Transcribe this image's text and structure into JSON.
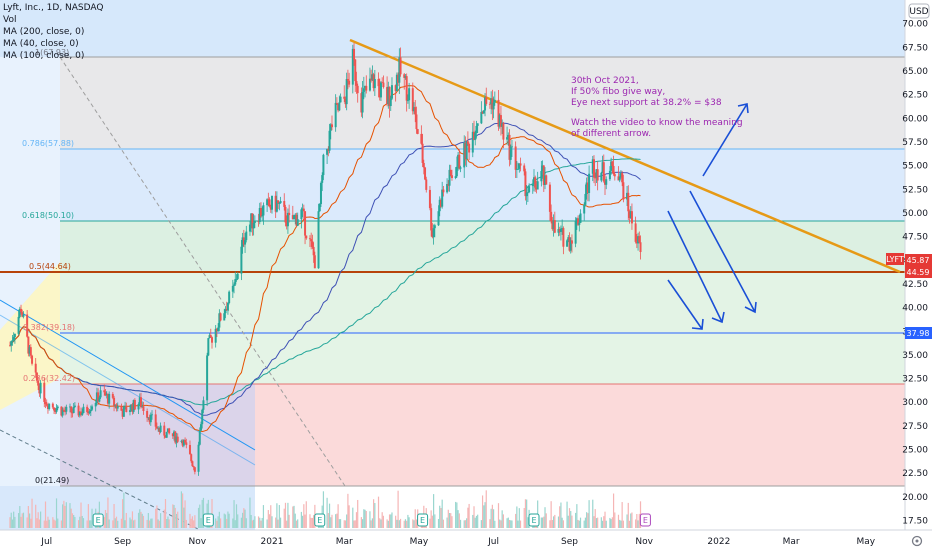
{
  "header": {
    "symbol_line": "Lyft, Inc., 1D, NASDAQ",
    "vol": "Vol",
    "ma_200": "MA (200, close, 0)",
    "ma_40": "MA (40, close, 0)",
    "ma_100": "MA (100, close, 0)"
  },
  "currency": "USD",
  "price_axis": [
    "70.00",
    "67.50",
    "65.00",
    "62.50",
    "60.00",
    "57.50",
    "55.00",
    "52.50",
    "50.00",
    "47.50",
    "45.00",
    "42.50",
    "40.00",
    "37.50",
    "35.00",
    "32.50",
    "30.00",
    "27.50",
    "25.00",
    "22.50",
    "20.00",
    "17.50"
  ],
  "time_axis": [
    "Jul",
    "Sep",
    "Nov",
    "2021",
    "Mar",
    "May",
    "Jul",
    "Sep",
    "Nov",
    "2022",
    "Mar",
    "May"
  ],
  "fib_labels": {
    "f1": "1(67.93)",
    "f786": "0.786(57.88)",
    "f618": "0.618(50.10)",
    "f5": "0.5(44.64)",
    "f382": "0.382(39.18)",
    "f236": "0.236(32.42)",
    "f0": "0(21.49)"
  },
  "badges": {
    "lyft": "LYFT",
    "last": "45.87",
    "level": "44.59",
    "support": "37.98"
  },
  "note": {
    "l1": "30th Oct 2021,",
    "l2": "If 50% fibo give way,",
    "l3": "Eye next support at 38.2% = $38",
    "l4": "Watch the video to know the meaning",
    "l5": "of different arrow."
  },
  "earnings_marker": "E",
  "chart_data": {
    "type": "candlestick",
    "title": "Lyft, Inc., 1D, NASDAQ",
    "ylim": [
      16.5,
      72.5
    ],
    "fib_levels": [
      67.93,
      57.88,
      50.1,
      44.64,
      39.18,
      32.42,
      21.49
    ],
    "horizontal_levels": [
      44.59,
      37.98
    ],
    "last_price": 45.87,
    "x_tick_labels": [
      "Jul",
      "Sep",
      "Nov",
      "2021",
      "Mar",
      "May",
      "Jul",
      "Sep",
      "Nov",
      "2022",
      "Mar",
      "May"
    ],
    "close_path": [
      [
        "2020-06-01",
        36
      ],
      [
        "2020-06-10",
        40
      ],
      [
        "2020-06-20",
        33
      ],
      [
        "2020-07-01",
        30
      ],
      [
        "2020-07-15",
        29
      ],
      [
        "2020-08-01",
        29
      ],
      [
        "2020-08-15",
        31
      ],
      [
        "2020-09-01",
        29
      ],
      [
        "2020-09-15",
        30
      ],
      [
        "2020-10-01",
        27
      ],
      [
        "2020-10-20",
        26
      ],
      [
        "2020-10-30",
        23
      ],
      [
        "2020-11-05",
        29
      ],
      [
        "2020-11-10",
        36
      ],
      [
        "2020-11-20",
        39
      ],
      [
        "2020-12-01",
        42
      ],
      [
        "2020-12-10",
        48
      ],
      [
        "2020-12-20",
        50
      ],
      [
        "2021-01-05",
        51
      ],
      [
        "2021-01-15",
        49
      ],
      [
        "2021-01-25",
        50
      ],
      [
        "2021-02-05",
        45
      ],
      [
        "2021-02-12",
        55
      ],
      [
        "2021-02-20",
        60
      ],
      [
        "2021-03-01",
        62
      ],
      [
        "2021-03-08",
        66
      ],
      [
        "2021-03-15",
        62
      ],
      [
        "2021-03-25",
        64
      ],
      [
        "2021-04-05",
        62
      ],
      [
        "2021-04-15",
        65
      ],
      [
        "2021-04-25",
        62
      ],
      [
        "2021-05-05",
        55
      ],
      [
        "2021-05-12",
        48
      ],
      [
        "2021-05-20",
        52
      ],
      [
        "2021-06-01",
        55
      ],
      [
        "2021-06-10",
        57
      ],
      [
        "2021-06-20",
        61
      ],
      [
        "2021-06-30",
        62
      ],
      [
        "2021-07-10",
        58
      ],
      [
        "2021-07-20",
        55
      ],
      [
        "2021-07-30",
        52
      ],
      [
        "2021-08-10",
        54
      ],
      [
        "2021-08-20",
        48
      ],
      [
        "2021-09-01",
        47
      ],
      [
        "2021-09-10",
        50
      ],
      [
        "2021-09-20",
        55
      ],
      [
        "2021-10-01",
        54
      ],
      [
        "2021-10-10",
        55
      ],
      [
        "2021-10-20",
        50
      ],
      [
        "2021-10-29",
        45.87
      ]
    ]
  }
}
